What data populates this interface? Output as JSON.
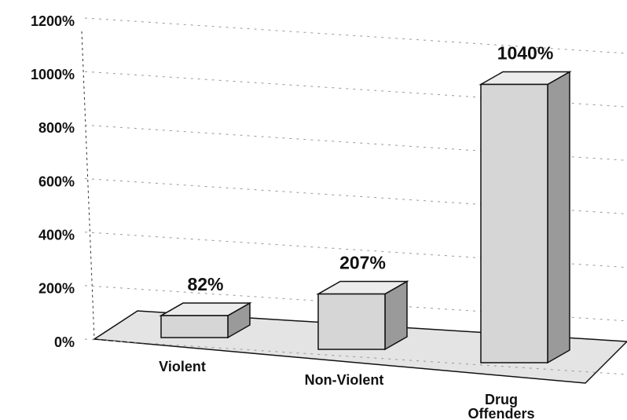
{
  "chart_data": {
    "type": "bar",
    "categories": [
      "Violent",
      "Non-Violent",
      "Drug Offenders"
    ],
    "values": [
      82,
      207,
      1040
    ],
    "value_labels": [
      "82%",
      "207%",
      "1040%"
    ],
    "color": "#d6d6d6",
    "ylim": [
      0,
      1200
    ],
    "yticks": [
      {
        "value": 0,
        "label": "0%"
      },
      {
        "value": 200,
        "label": "200%"
      },
      {
        "value": 400,
        "label": "400%"
      },
      {
        "value": 600,
        "label": "600%"
      },
      {
        "value": 800,
        "label": "800%"
      },
      {
        "value": 1000,
        "label": "1000%"
      },
      {
        "value": 1200,
        "label": "1200%"
      }
    ],
    "grid": true
  }
}
